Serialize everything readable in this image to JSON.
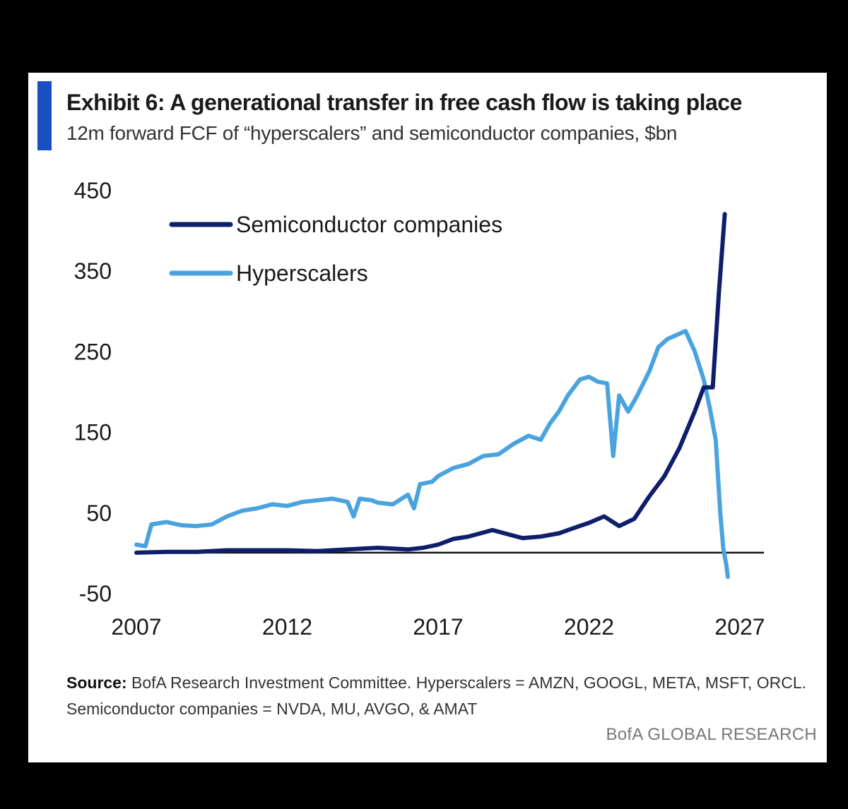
{
  "exhibit": {
    "title": "Exhibit 6: A generational transfer in free cash flow is taking place",
    "subtitle": "12m forward FCF of “hyperscalers” and semiconductor companies, $bn"
  },
  "source": {
    "label": "Source:",
    "text": "BofA Research Investment Committee. Hyperscalers = AMZN, GOOGL, META, MSFT, ORCL. Semiconductor companies = NVDA, MU, AVGO, & AMAT"
  },
  "brand": "BofA GLOBAL RESEARCH",
  "colors": {
    "semiconductor": "#0d1f6b",
    "hyperscalers": "#4aa3df",
    "zero_line": "#111111",
    "accent": "#1a4fc4"
  },
  "chart_data": {
    "type": "line",
    "title": "Exhibit 6: A generational transfer in free cash flow is taking place",
    "subtitle": "12m forward FCF of “hyperscalers” and semiconductor companies, $bn",
    "xlim": [
      2007,
      2027
    ],
    "ylim": [
      -50,
      450
    ],
    "x_ticks": [
      "2007",
      "2012",
      "2017",
      "2022",
      "2027"
    ],
    "y_ticks": [
      "450",
      "350",
      "250",
      "150",
      "50",
      "-50"
    ],
    "legend_position": "top-left",
    "grid": false,
    "series": [
      {
        "name": "Semiconductor companies",
        "color": "#0d1f6b",
        "points": [
          [
            2007.0,
            0
          ],
          [
            2008.0,
            1
          ],
          [
            2009.0,
            1
          ],
          [
            2010.0,
            3
          ],
          [
            2011.0,
            3
          ],
          [
            2012.0,
            3
          ],
          [
            2013.0,
            2
          ],
          [
            2014.0,
            4
          ],
          [
            2015.0,
            6
          ],
          [
            2016.0,
            4
          ],
          [
            2016.5,
            6
          ],
          [
            2017.0,
            10
          ],
          [
            2017.5,
            17
          ],
          [
            2018.0,
            20
          ],
          [
            2018.8,
            28
          ],
          [
            2019.3,
            23
          ],
          [
            2019.8,
            18
          ],
          [
            2020.4,
            20
          ],
          [
            2021.0,
            24
          ],
          [
            2021.6,
            32
          ],
          [
            2022.0,
            37
          ],
          [
            2022.5,
            45
          ],
          [
            2023.0,
            33
          ],
          [
            2023.5,
            42
          ],
          [
            2024.0,
            70
          ],
          [
            2024.5,
            95
          ],
          [
            2025.0,
            130
          ],
          [
            2025.5,
            175
          ],
          [
            2025.8,
            205
          ],
          [
            2026.1,
            205
          ],
          [
            2026.3,
            320
          ],
          [
            2026.5,
            420
          ]
        ]
      },
      {
        "name": "Hyperscalers",
        "color": "#4aa3df",
        "points": [
          [
            2007.0,
            10
          ],
          [
            2007.3,
            8
          ],
          [
            2007.5,
            35
          ],
          [
            2008.0,
            38
          ],
          [
            2008.5,
            34
          ],
          [
            2009.0,
            33
          ],
          [
            2009.5,
            35
          ],
          [
            2010.0,
            45
          ],
          [
            2010.5,
            52
          ],
          [
            2011.0,
            55
          ],
          [
            2011.5,
            60
          ],
          [
            2012.0,
            58
          ],
          [
            2012.5,
            63
          ],
          [
            2013.0,
            65
          ],
          [
            2013.5,
            67
          ],
          [
            2014.0,
            63
          ],
          [
            2014.2,
            45
          ],
          [
            2014.4,
            67
          ],
          [
            2014.8,
            65
          ],
          [
            2015.0,
            62
          ],
          [
            2015.5,
            60
          ],
          [
            2016.0,
            72
          ],
          [
            2016.2,
            55
          ],
          [
            2016.4,
            85
          ],
          [
            2016.8,
            88
          ],
          [
            2017.0,
            95
          ],
          [
            2017.5,
            105
          ],
          [
            2018.0,
            110
          ],
          [
            2018.5,
            120
          ],
          [
            2019.0,
            122
          ],
          [
            2019.5,
            135
          ],
          [
            2020.0,
            145
          ],
          [
            2020.4,
            140
          ],
          [
            2020.7,
            160
          ],
          [
            2021.0,
            175
          ],
          [
            2021.3,
            195
          ],
          [
            2021.7,
            215
          ],
          [
            2022.0,
            218
          ],
          [
            2022.3,
            212
          ],
          [
            2022.6,
            210
          ],
          [
            2022.8,
            120
          ],
          [
            2023.0,
            195
          ],
          [
            2023.3,
            175
          ],
          [
            2023.6,
            195
          ],
          [
            2024.0,
            225
          ],
          [
            2024.3,
            255
          ],
          [
            2024.6,
            265
          ],
          [
            2024.9,
            270
          ],
          [
            2025.2,
            275
          ],
          [
            2025.5,
            250
          ],
          [
            2025.8,
            215
          ],
          [
            2026.0,
            180
          ],
          [
            2026.2,
            140
          ],
          [
            2026.35,
            50
          ],
          [
            2026.45,
            5
          ],
          [
            2026.55,
            -15
          ],
          [
            2026.6,
            -30
          ]
        ]
      }
    ]
  }
}
